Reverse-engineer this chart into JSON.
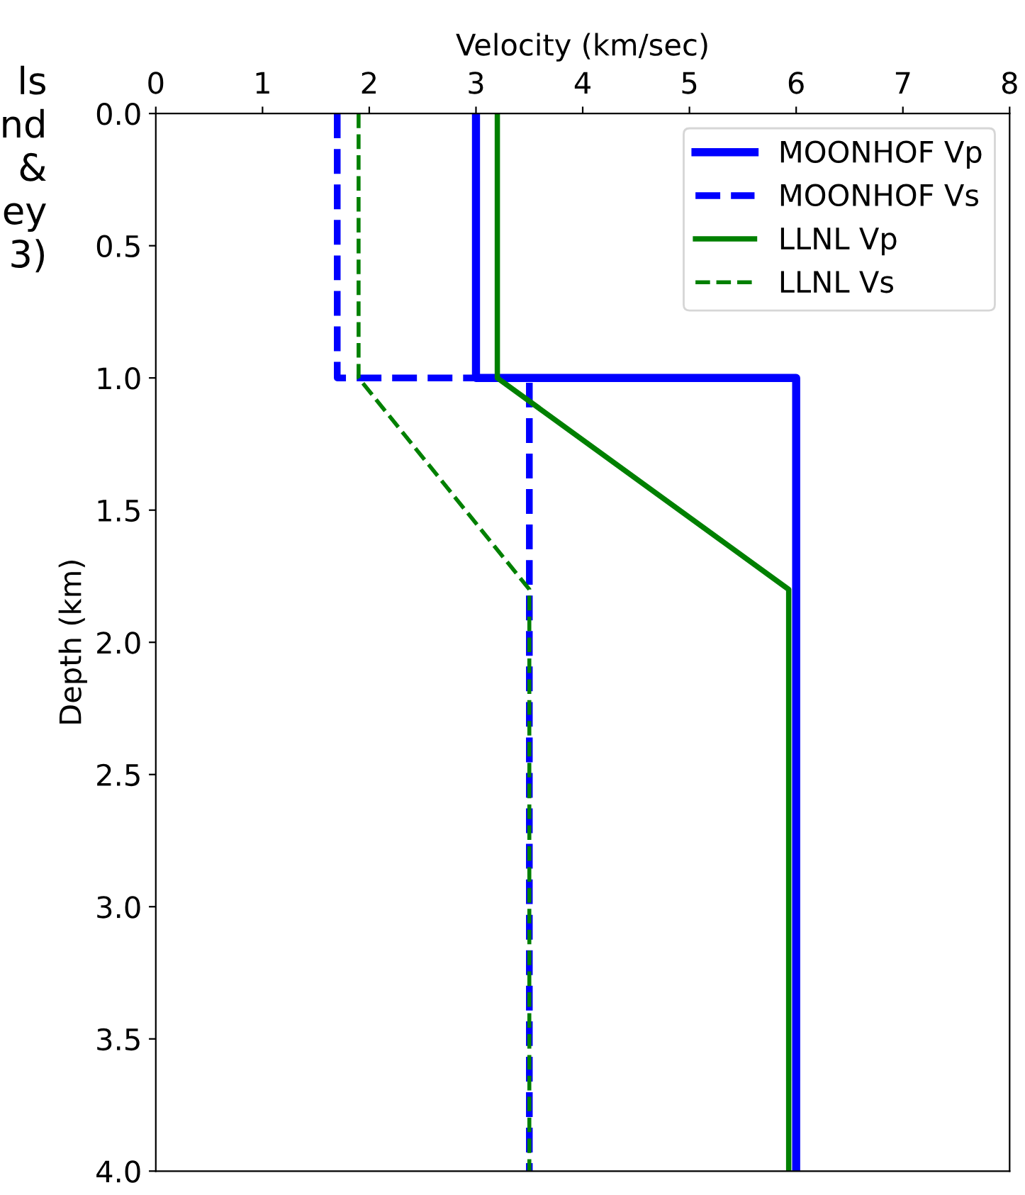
{
  "chart_data": {
    "type": "line",
    "xlabel": "Velocity (km/sec)",
    "ylabel": "Depth (km)",
    "series": [
      {
        "name": "MOONHOF Vp",
        "color": "#0000ff",
        "line_style": "solid",
        "x": [
          3.0,
          3.0,
          6.0,
          6.0
        ],
        "values": [
          0.0,
          1.0,
          1.0,
          4.0
        ]
      },
      {
        "name": "MOONHOF Vs",
        "color": "#0000ff",
        "line_style": "dashed",
        "x": [
          1.7,
          1.7,
          3.5,
          3.5
        ],
        "values": [
          0.0,
          1.0,
          1.0,
          4.0
        ]
      },
      {
        "name": "LLNL Vp",
        "color": "#008000",
        "line_style": "solid",
        "x": [
          3.2,
          3.2,
          5.93,
          5.93
        ],
        "values": [
          0.0,
          1.0,
          1.8,
          4.0
        ]
      },
      {
        "name": "LLNL Vs",
        "color": "#008000",
        "line_style": "dashed",
        "x": [
          1.9,
          1.9,
          3.5,
          3.5
        ],
        "values": [
          0.0,
          1.0,
          1.8,
          4.0
        ]
      }
    ],
    "xlim": [
      0,
      8
    ],
    "xticks": [
      0,
      1,
      2,
      3,
      4,
      5,
      6,
      7,
      8
    ],
    "ylim": [
      4.0,
      0.0
    ],
    "yticks": [
      {
        "value": 0,
        "label": "0.0"
      },
      {
        "value": 0.5,
        "label": "0.5"
      },
      {
        "value": 1,
        "label": "1.0"
      },
      {
        "value": 1.5,
        "label": "1.5"
      },
      {
        "value": 2,
        "label": "2.0"
      },
      {
        "value": 2.5,
        "label": "2.5"
      },
      {
        "value": 3,
        "label": "3.0"
      },
      {
        "value": 3.5,
        "label": "3.5"
      },
      {
        "value": 4,
        "label": "4.0"
      }
    ],
    "grid": false,
    "legend": "top right",
    "marker": "none",
    "annotations": [
      "ls\nnd\n&\ney\n3)"
    ]
  }
}
